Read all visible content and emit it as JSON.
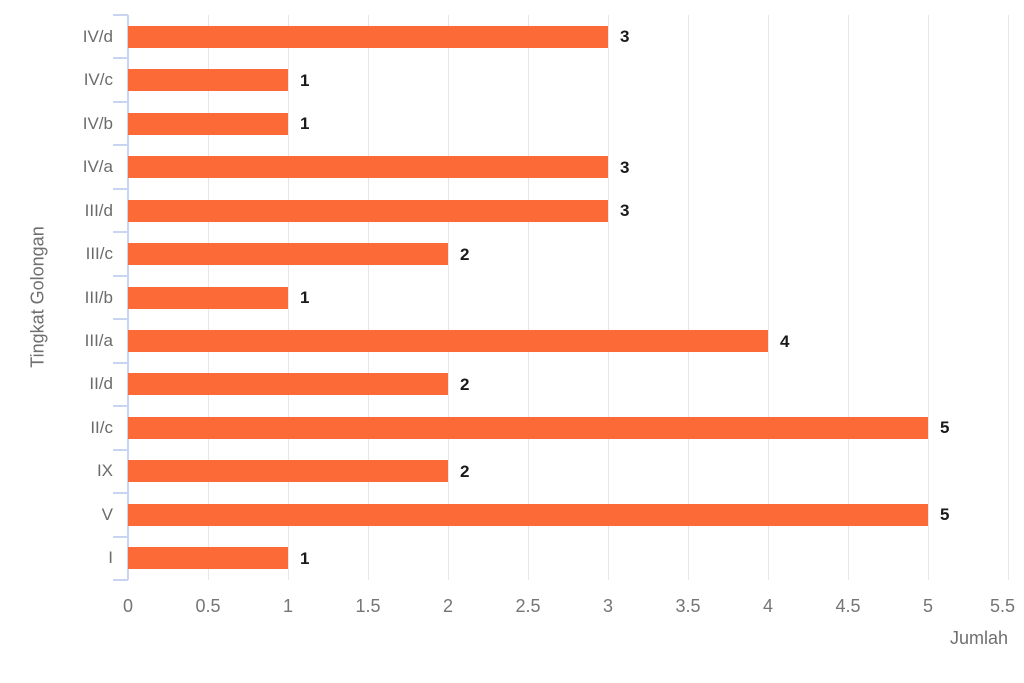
{
  "chart_data": {
    "type": "bar",
    "orientation": "horizontal",
    "title": "",
    "categories": [
      "IV/d",
      "IV/c",
      "IV/b",
      "IV/a",
      "III/d",
      "III/c",
      "III/b",
      "III/a",
      "II/d",
      "II/c",
      "IX",
      "V",
      "I"
    ],
    "values": [
      3,
      1,
      1,
      3,
      3,
      2,
      1,
      4,
      2,
      5,
      2,
      5,
      1
    ],
    "xlabel": "Jumlah",
    "ylabel": "Tingkat Golongan",
    "xlim": [
      0,
      5.5
    ],
    "xticks": [
      0,
      0.5,
      1,
      1.5,
      2,
      2.5,
      3,
      3.5,
      4,
      4.5,
      5,
      5.5
    ],
    "xtick_labels": [
      "0",
      "0.5",
      "1",
      "1.5",
      "2",
      "2.5",
      "3",
      "3.5",
      "4",
      "4.5",
      "5",
      "5.5"
    ],
    "grid": "vertical-only",
    "legend": "none",
    "value_labels_shown": true
  },
  "colors": {
    "bar": "#fc6a38",
    "axis_line": "#c9d4f0",
    "gridline": "#e7e7e7",
    "category_text": "#6b6b6b",
    "tick_text": "#757575",
    "axis_title_text": "#6f6f6f",
    "value_label_text": "#1a1a1a",
    "background": "#ffffff"
  }
}
